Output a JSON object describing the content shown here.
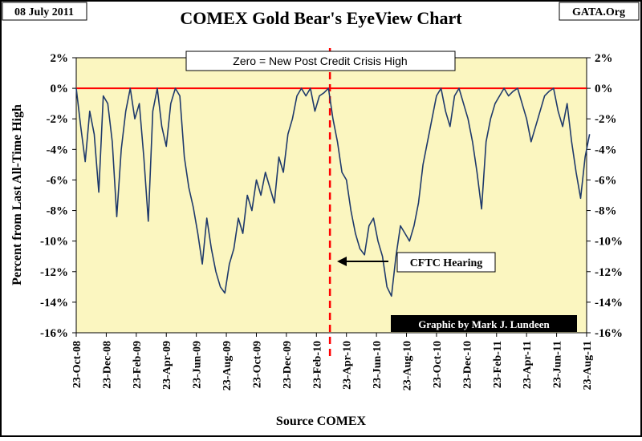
{
  "header": {
    "date": "08 July 2011",
    "title": "COMEX Gold Bear's EyeView Chart",
    "source_badge": "GATA.Org"
  },
  "chart_data": {
    "type": "line",
    "title": "COMEX Gold Bear's EyeView Chart",
    "subtitle": "Zero = New Post Credit Crisis High",
    "ylabel": "Percent from Last All-Time High",
    "xlabel": "Source COMEX",
    "credit": "Graphic by Mark J. Lundeen",
    "ylim": [
      -16,
      2
    ],
    "yticks": [
      2,
      0,
      -2,
      -4,
      -6,
      -8,
      -10,
      -12,
      -14,
      -16
    ],
    "ytick_labels": [
      "2%",
      "0%",
      "-2%",
      "-4%",
      "-6%",
      "-8%",
      "-10%",
      "-12%",
      "-14%",
      "-16%"
    ],
    "x_index_range": [
      0,
      34
    ],
    "x_tick_labels": [
      "23-Oct-08",
      "23-Dec-08",
      "23-Feb-09",
      "23-Apr-09",
      "23-Jun-09",
      "23-Aug-09",
      "23-Oct-09",
      "23-Dec-09",
      "23-Feb-10",
      "23-Apr-10",
      "23-Jun-10",
      "23-Aug-10",
      "23-Oct-10",
      "23-Dec-10",
      "23-Feb-11",
      "23-Apr-11",
      "23-Jun-11",
      "23-Aug-11"
    ],
    "reference_line": {
      "y": 0,
      "color": "#ff0000"
    },
    "event": {
      "x": 16.9,
      "label": "CFTC Hearing",
      "color": "#ff0000"
    },
    "series": [
      {
        "name": "Percent from Last All-Time High",
        "color": "#1f3a6b",
        "x": [
          0,
          0.3,
          0.6,
          0.9,
          1.2,
          1.5,
          1.8,
          2.1,
          2.4,
          2.7,
          3.0,
          3.3,
          3.6,
          3.9,
          4.2,
          4.5,
          4.8,
          5.1,
          5.4,
          5.7,
          6.0,
          6.3,
          6.6,
          6.9,
          7.2,
          7.5,
          7.8,
          8.1,
          8.4,
          8.7,
          9.0,
          9.3,
          9.6,
          9.9,
          10.2,
          10.5,
          10.8,
          11.1,
          11.4,
          11.7,
          12.0,
          12.3,
          12.6,
          12.9,
          13.2,
          13.5,
          13.8,
          14.1,
          14.4,
          14.7,
          15.0,
          15.3,
          15.6,
          15.9,
          16.2,
          16.5,
          16.8,
          17.1,
          17.4,
          17.7,
          18.0,
          18.3,
          18.6,
          18.9,
          19.2,
          19.5,
          19.8,
          20.1,
          20.4,
          20.7,
          21.0,
          21.3,
          21.6,
          21.9,
          22.2,
          22.5,
          22.8,
          23.1,
          23.4,
          23.7,
          24.0,
          24.3,
          24.6,
          24.9,
          25.2,
          25.5,
          25.8,
          26.1,
          26.4,
          26.7,
          27.0,
          27.3,
          27.6,
          27.9,
          28.2,
          28.5,
          28.8,
          29.1,
          29.4,
          29.7,
          30.0,
          30.3,
          30.6,
          30.9,
          31.2,
          31.5,
          31.8,
          32.1,
          32.4,
          32.7,
          33.0,
          33.3,
          33.6,
          33.9,
          34.2
        ],
        "values": [
          0,
          -2.5,
          -4.8,
          -1.5,
          -3.0,
          -6.8,
          -0.5,
          -1.0,
          -3.5,
          -8.4,
          -4.0,
          -1.5,
          0,
          -2.0,
          -1.0,
          -4.5,
          -8.7,
          -1.5,
          0,
          -2.5,
          -3.8,
          -1.0,
          0,
          -0.5,
          -4.5,
          -6.5,
          -7.8,
          -9.5,
          -11.5,
          -8.5,
          -10.5,
          -12.0,
          -13.0,
          -13.4,
          -11.5,
          -10.5,
          -8.5,
          -9.5,
          -7.0,
          -8.0,
          -6.0,
          -7.0,
          -5.5,
          -6.5,
          -7.5,
          -4.5,
          -5.5,
          -3.0,
          -2.0,
          -0.5,
          0,
          -0.5,
          0,
          -1.5,
          -0.5,
          -0.3,
          0,
          -2.0,
          -3.5,
          -5.5,
          -6.0,
          -8.0,
          -9.5,
          -10.5,
          -10.9,
          -9.0,
          -8.5,
          -10.0,
          -11.0,
          -13.0,
          -13.6,
          -11.0,
          -9.0,
          -9.5,
          -10.0,
          -9.0,
          -7.5,
          -5.0,
          -3.5,
          -2.0,
          -0.5,
          0,
          -1.5,
          -2.5,
          -0.5,
          0,
          -1.0,
          -2.0,
          -3.5,
          -5.5,
          -7.9,
          -3.5,
          -2.0,
          -1.0,
          -0.5,
          0,
          -0.5,
          -0.2,
          0,
          -1.0,
          -2.0,
          -3.5,
          -2.5,
          -1.5,
          -0.5,
          -0.2,
          0,
          -1.5,
          -2.5,
          -1.0,
          -3.5,
          -5.5,
          -7.2,
          -4.5,
          -3.0
        ]
      }
    ]
  }
}
